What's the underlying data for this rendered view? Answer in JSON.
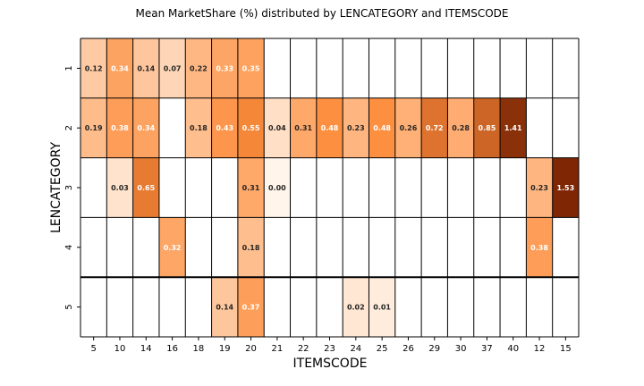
{
  "chart_data": {
    "type": "heatmap",
    "title": "Mean MarketShare (%) distributed by LENCATEGORY and ITEMSCODE",
    "xlabel": "ITEMSCODE",
    "ylabel": "LENCATEGORY",
    "x_categories": [
      "5",
      "10",
      "14",
      "16",
      "18",
      "19",
      "20",
      "21",
      "22",
      "23",
      "24",
      "25",
      "26",
      "29",
      "30",
      "37",
      "40",
      "12",
      "15"
    ],
    "y_categories": [
      "1",
      "2",
      "3",
      "4",
      "5"
    ],
    "color_scale": {
      "low": "#fff5eb",
      "mid": "#fd8d3c",
      "high": "#7f2704",
      "vmin": 0,
      "vmax": 1.53
    },
    "values": [
      [
        0.12,
        0.34,
        0.14,
        0.07,
        0.22,
        0.33,
        0.35,
        null,
        null,
        null,
        null,
        null,
        null,
        null,
        null,
        null,
        null,
        null,
        null
      ],
      [
        0.19,
        0.38,
        0.34,
        null,
        0.18,
        0.43,
        0.55,
        0.04,
        0.31,
        0.48,
        0.23,
        0.48,
        0.26,
        0.72,
        0.28,
        0.85,
        1.41,
        null,
        null
      ],
      [
        null,
        0.03,
        0.65,
        null,
        null,
        null,
        0.31,
        0.0,
        null,
        null,
        null,
        null,
        null,
        null,
        null,
        null,
        null,
        0.23,
        1.53
      ],
      [
        null,
        null,
        null,
        0.32,
        null,
        null,
        0.18,
        null,
        null,
        null,
        null,
        null,
        null,
        null,
        null,
        null,
        null,
        0.38,
        null
      ],
      [
        null,
        null,
        null,
        null,
        null,
        0.14,
        0.37,
        null,
        null,
        null,
        0.02,
        0.01,
        null,
        null,
        null,
        null,
        null,
        null,
        null
      ]
    ],
    "value_labels": [
      [
        "0.12",
        "0.34",
        "0.14",
        "0.07",
        "0.22",
        "0.33",
        "0.35",
        "",
        "",
        "",
        "",
        "",
        "",
        "",
        "",
        "",
        "",
        "",
        ""
      ],
      [
        "0.19",
        "0.38",
        "0.34",
        "",
        "0.18",
        "0.43",
        "0.55",
        "0.04",
        "0.31",
        "0.48",
        "0.23",
        "0.48",
        "0.26",
        "0.72",
        "0.28",
        "0.85",
        "1.41",
        "",
        ""
      ],
      [
        "",
        "0.03",
        "0.65",
        "",
        "",
        "",
        "0.31",
        "0.00",
        "",
        "",
        "",
        "",
        "",
        "",
        "",
        "",
        "",
        "0.23",
        "1.53"
      ],
      [
        "",
        "",
        "",
        "0.32",
        "",
        "",
        "0.18",
        "",
        "",
        "",
        "",
        "",
        "",
        "",
        "",
        "",
        "",
        "0.38",
        ""
      ],
      [
        "",
        "",
        "",
        "",
        "",
        "0.14",
        "0.37",
        "",
        "",
        "",
        "0.02",
        "0.01",
        "",
        "",
        "",
        "",
        "",
        "",
        ""
      ]
    ]
  }
}
